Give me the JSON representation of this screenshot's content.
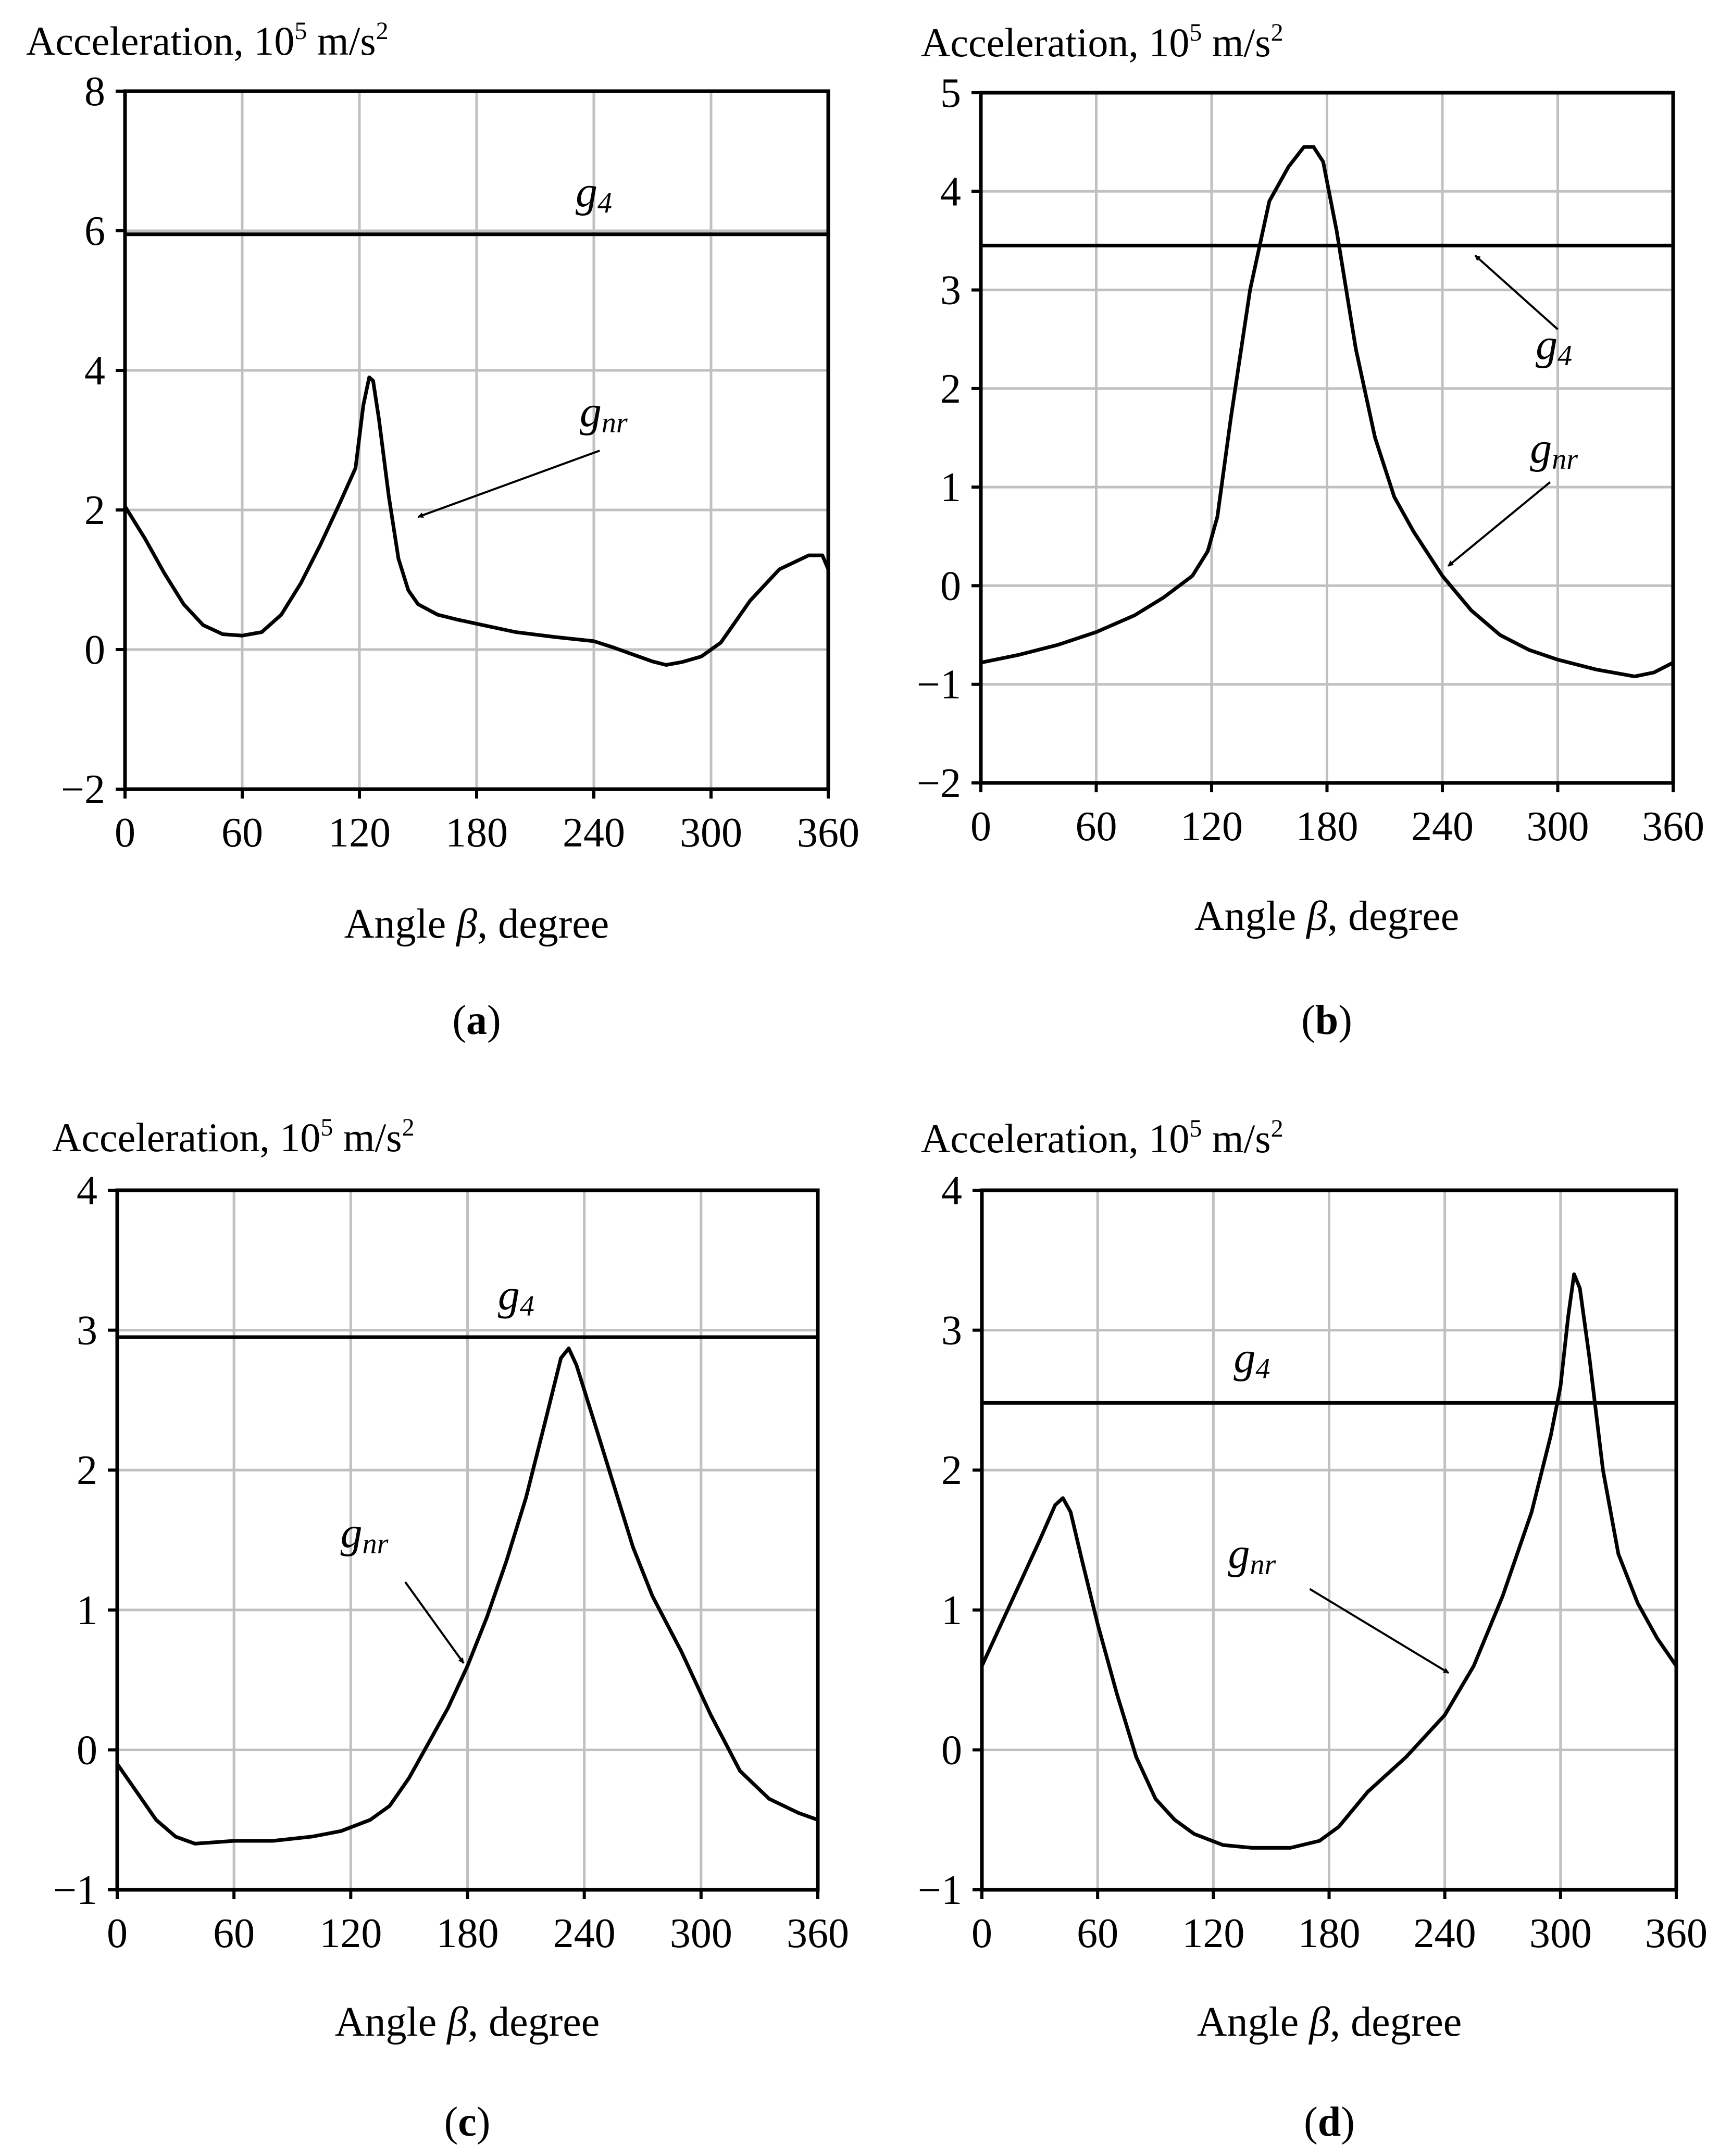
{
  "figure": {
    "colors": {
      "grid": "#c0c0c0",
      "line": "#000000",
      "axis": "#000000",
      "background": "#ffffff"
    }
  },
  "chart_data": [
    {
      "panel": "a",
      "type": "line",
      "ylabel": "Acceleration, 10",
      "ylabel_power": "5",
      "ylabel_unit": " m/s",
      "ylabel_unit_power": "2",
      "xlabel_pre": "Angle ",
      "xlabel_symbol": "β",
      "xlabel_post": ", degree",
      "panel_label": "a",
      "xlim": [
        0,
        360
      ],
      "ylim": [
        -2,
        8
      ],
      "xticks": [
        0,
        60,
        120,
        180,
        240,
        300,
        360
      ],
      "xtick_labels": [
        "0",
        "60",
        "120",
        "180",
        "240",
        "300",
        "360"
      ],
      "yticks": [
        -2,
        0,
        2,
        4,
        6,
        8
      ],
      "ytick_labels": [
        "−2",
        "0",
        "2",
        "4",
        "6",
        "8"
      ],
      "grid": true,
      "series": [
        {
          "name": "g4",
          "label_main": "g",
          "label_sub": "4",
          "x": [
            0,
            360
          ],
          "y": [
            5.95,
            5.95
          ],
          "label_at": [
            240,
            6.35
          ]
        },
        {
          "name": "gnr",
          "label_main": "g",
          "label_sub": "nr",
          "x": [
            0,
            10,
            20,
            30,
            40,
            50,
            60,
            70,
            80,
            90,
            100,
            110,
            118,
            122,
            125,
            127,
            130,
            135,
            140,
            145,
            150,
            160,
            170,
            180,
            200,
            220,
            240,
            250,
            260,
            270,
            277,
            285,
            295,
            305,
            320,
            335,
            350,
            357,
            360
          ],
          "y": [
            2.05,
            1.6,
            1.1,
            0.65,
            0.35,
            0.22,
            0.2,
            0.25,
            0.5,
            0.95,
            1.5,
            2.1,
            2.6,
            3.5,
            3.9,
            3.85,
            3.3,
            2.2,
            1.3,
            0.85,
            0.65,
            0.5,
            0.43,
            0.37,
            0.25,
            0.18,
            0.12,
            0.03,
            -0.07,
            -0.17,
            -0.22,
            -0.18,
            -0.1,
            0.1,
            0.7,
            1.15,
            1.35,
            1.35,
            1.15
          ],
          "label_at": [
            245,
            3.2
          ],
          "arrow_from": [
            243,
            2.85
          ],
          "arrow_to": [
            150,
            1.9
          ]
        }
      ]
    },
    {
      "panel": "b",
      "type": "line",
      "ylabel": "Acceleration, 10",
      "ylabel_power": "5",
      "ylabel_unit": " m/s",
      "ylabel_unit_power": "2",
      "xlabel_pre": "Angle ",
      "xlabel_symbol": "β",
      "xlabel_post": ", degree",
      "panel_label": "b",
      "xlim": [
        0,
        360
      ],
      "ylim": [
        -2,
        5
      ],
      "xticks": [
        0,
        60,
        120,
        180,
        240,
        300,
        360
      ],
      "xtick_labels": [
        "0",
        "60",
        "120",
        "180",
        "240",
        "300",
        "360"
      ],
      "yticks": [
        -2,
        -1,
        0,
        1,
        2,
        3,
        4,
        5
      ],
      "ytick_labels": [
        "−2",
        "−1",
        "0",
        "1",
        "2",
        "3",
        "4",
        "5"
      ],
      "grid": true,
      "series": [
        {
          "name": "g4",
          "label_main": "g",
          "label_sub": "4",
          "x": [
            0,
            360
          ],
          "y": [
            3.45,
            3.45
          ],
          "label_at": [
            298,
            2.3
          ],
          "arrow_from": [
            300,
            2.6
          ],
          "arrow_to": [
            257,
            3.35
          ]
        },
        {
          "name": "gnr",
          "label_main": "g",
          "label_sub": "nr",
          "x": [
            0,
            20,
            40,
            60,
            80,
            95,
            110,
            118,
            123,
            130,
            140,
            150,
            160,
            168,
            173,
            178,
            185,
            195,
            205,
            215,
            225,
            240,
            255,
            270,
            285,
            300,
            320,
            340,
            350,
            360
          ],
          "y": [
            -0.78,
            -0.7,
            -0.6,
            -0.47,
            -0.3,
            -0.12,
            0.1,
            0.35,
            0.7,
            1.7,
            3.0,
            3.9,
            4.25,
            4.45,
            4.45,
            4.3,
            3.6,
            2.4,
            1.5,
            0.9,
            0.55,
            0.1,
            -0.25,
            -0.5,
            -0.65,
            -0.75,
            -0.85,
            -0.92,
            -0.88,
            -0.78
          ],
          "label_at": [
            298,
            1.25
          ],
          "arrow_from": [
            296,
            1.05
          ],
          "arrow_to": [
            243,
            0.2
          ]
        }
      ]
    },
    {
      "panel": "c",
      "type": "line",
      "ylabel": "Acceleration, 10",
      "ylabel_power": "5",
      "ylabel_unit": " m/s",
      "ylabel_unit_power": "2",
      "xlabel_pre": "Angle ",
      "xlabel_symbol": "β",
      "xlabel_post": ", degree",
      "panel_label": "c",
      "xlim": [
        0,
        360
      ],
      "ylim": [
        -1,
        4
      ],
      "xticks": [
        0,
        60,
        120,
        180,
        240,
        300,
        360
      ],
      "xtick_labels": [
        "0",
        "60",
        "120",
        "180",
        "240",
        "300",
        "360"
      ],
      "yticks": [
        -1,
        0,
        1,
        2,
        3,
        4
      ],
      "ytick_labels": [
        "−1",
        "0",
        "1",
        "2",
        "3",
        "4"
      ],
      "grid": true,
      "series": [
        {
          "name": "g4",
          "label_main": "g",
          "label_sub": "4",
          "x": [
            0,
            360
          ],
          "y": [
            2.95,
            2.95
          ],
          "label_at": [
            205,
            3.15
          ]
        },
        {
          "name": "gnr",
          "label_main": "g",
          "label_sub": "nr",
          "x": [
            0,
            10,
            20,
            30,
            40,
            50,
            60,
            80,
            100,
            115,
            130,
            140,
            150,
            160,
            170,
            180,
            190,
            200,
            210,
            220,
            228,
            232,
            236,
            245,
            255,
            265,
            275,
            290,
            305,
            320,
            335,
            350,
            360
          ],
          "y": [
            -0.1,
            -0.3,
            -0.5,
            -0.62,
            -0.67,
            -0.66,
            -0.65,
            -0.65,
            -0.62,
            -0.58,
            -0.5,
            -0.4,
            -0.2,
            0.05,
            0.3,
            0.6,
            0.95,
            1.35,
            1.8,
            2.35,
            2.8,
            2.87,
            2.75,
            2.35,
            1.9,
            1.45,
            1.1,
            0.7,
            0.25,
            -0.15,
            -0.35,
            -0.45,
            -0.5
          ],
          "label_at": [
            127,
            1.45
          ],
          "arrow_from": [
            148,
            1.2
          ],
          "arrow_to": [
            178,
            0.62
          ]
        }
      ]
    },
    {
      "panel": "d",
      "type": "line",
      "ylabel": "Acceleration, 10",
      "ylabel_power": "5",
      "ylabel_unit": " m/s",
      "ylabel_unit_power": "2",
      "xlabel_pre": "Angle ",
      "xlabel_symbol": "β",
      "xlabel_post": ", degree",
      "panel_label": "d",
      "xlim": [
        0,
        360
      ],
      "ylim": [
        -1,
        4
      ],
      "xticks": [
        0,
        60,
        120,
        180,
        240,
        300,
        360
      ],
      "xtick_labels": [
        "0",
        "60",
        "120",
        "180",
        "240",
        "300",
        "360"
      ],
      "yticks": [
        -1,
        0,
        1,
        2,
        3,
        4
      ],
      "ytick_labels": [
        "−1",
        "0",
        "1",
        "2",
        "3",
        "4"
      ],
      "grid": true,
      "series": [
        {
          "name": "g4",
          "label_main": "g",
          "label_sub": "4",
          "x": [
            0,
            360
          ],
          "y": [
            2.48,
            2.48
          ],
          "label_at": [
            140,
            2.7
          ]
        },
        {
          "name": "gnr",
          "label_main": "g",
          "label_sub": "nr",
          "x": [
            0,
            10,
            20,
            30,
            38,
            42,
            46,
            52,
            60,
            70,
            80,
            90,
            100,
            110,
            125,
            140,
            160,
            175,
            185,
            200,
            220,
            240,
            255,
            270,
            285,
            295,
            300,
            304,
            307,
            310,
            315,
            322,
            330,
            340,
            350,
            360
          ],
          "y": [
            0.6,
            0.9,
            1.2,
            1.5,
            1.75,
            1.8,
            1.7,
            1.35,
            0.9,
            0.4,
            -0.05,
            -0.35,
            -0.5,
            -0.6,
            -0.68,
            -0.7,
            -0.7,
            -0.65,
            -0.55,
            -0.3,
            -0.05,
            0.25,
            0.6,
            1.1,
            1.7,
            2.25,
            2.6,
            3.1,
            3.4,
            3.3,
            2.8,
            2.0,
            1.4,
            1.05,
            0.8,
            0.6
          ],
          "label_at": [
            140,
            1.3
          ],
          "arrow_from": [
            170,
            1.15
          ],
          "arrow_to": [
            242,
            0.55
          ]
        }
      ]
    }
  ]
}
